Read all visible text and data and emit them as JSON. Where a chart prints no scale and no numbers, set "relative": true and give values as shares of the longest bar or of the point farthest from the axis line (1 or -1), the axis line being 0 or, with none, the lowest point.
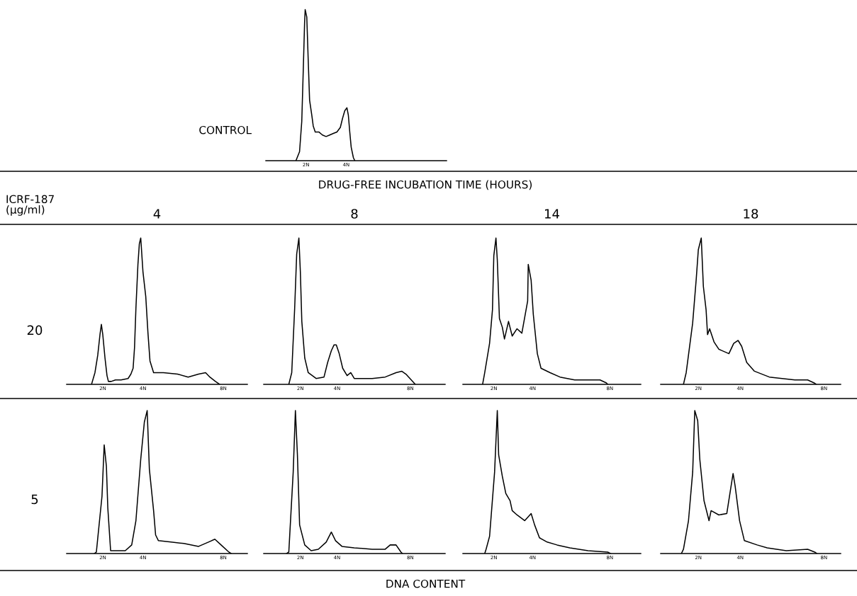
{
  "chart_data": [
    {
      "type": "line",
      "title": "CONTROL",
      "relative": true,
      "color": "#000000",
      "annotations": [
        "DRUG-FREE INCUBATION TIME (HOURS)",
        "ICRF-187\n(μg/ml)"
      ],
      "xlim": [
        0,
        9
      ],
      "xticks": [
        {
          "value": 2,
          "label": "2N"
        },
        {
          "value": 4,
          "label": "4N"
        }
      ],
      "x": [
        1.5,
        1.68,
        1.79,
        1.86,
        1.93,
        1.96,
        2.04,
        2.11,
        2.18,
        2.29,
        2.36,
        2.46,
        2.64,
        2.82,
        3.0,
        3.18,
        3.36,
        3.54,
        3.71,
        3.82,
        3.93,
        4.04,
        4.11,
        4.18,
        4.25,
        4.36,
        4.43
      ],
      "values": [
        0,
        0.06,
        0.26,
        0.58,
        0.91,
        1,
        0.95,
        0.67,
        0.4,
        0.3,
        0.23,
        0.19,
        0.19,
        0.17,
        0.16,
        0.17,
        0.18,
        0.19,
        0.22,
        0.28,
        0.33,
        0.35,
        0.3,
        0.19,
        0.09,
        0.02,
        0
      ]
    },
    {
      "type": "line",
      "title": "4",
      "ylabel": "20",
      "relative": true,
      "color": "#000000",
      "xlim": [
        0.2,
        9.2
      ],
      "xticks": [
        {
          "value": 2,
          "label": "2N"
        },
        {
          "value": 4,
          "label": "4N"
        },
        {
          "value": 8,
          "label": "8N"
        }
      ],
      "x": [
        1.44,
        1.61,
        1.75,
        1.86,
        1.93,
        2.0,
        2.11,
        2.21,
        2.28,
        2.42,
        2.63,
        2.91,
        3.26,
        3.4,
        3.51,
        3.58,
        3.65,
        3.75,
        3.82,
        3.89,
        4.0,
        4.14,
        4.25,
        4.35,
        4.53,
        5.02,
        5.72,
        6.25,
        6.77,
        7.12,
        7.33,
        7.61,
        7.82
      ],
      "values": [
        0,
        0.08,
        0.2,
        0.34,
        0.41,
        0.34,
        0.18,
        0.06,
        0.02,
        0.02,
        0.03,
        0.03,
        0.04,
        0.07,
        0.11,
        0.25,
        0.52,
        0.82,
        0.96,
        1,
        0.77,
        0.6,
        0.35,
        0.16,
        0.08,
        0.08,
        0.07,
        0.05,
        0.07,
        0.08,
        0.05,
        0.02,
        0
      ]
    },
    {
      "type": "line",
      "title": "8",
      "relative": true,
      "color": "#000000",
      "xlim": [
        0,
        9.9
      ],
      "xticks": [
        {
          "value": 2,
          "label": "2N"
        },
        {
          "value": 4,
          "label": "4N"
        },
        {
          "value": 8,
          "label": "8N"
        }
      ],
      "x": [
        1.37,
        1.53,
        1.69,
        1.8,
        1.92,
        2.0,
        2.08,
        2.24,
        2.43,
        2.86,
        3.29,
        3.49,
        3.69,
        3.84,
        3.96,
        4.12,
        4.31,
        4.55,
        4.75,
        4.94,
        5.92,
        6.63,
        7.22,
        7.53,
        7.76,
        8.2,
        8.27
      ],
      "values": [
        0,
        0.08,
        0.52,
        0.89,
        1,
        0.77,
        0.43,
        0.18,
        0.08,
        0.04,
        0.05,
        0.15,
        0.23,
        0.27,
        0.27,
        0.21,
        0.11,
        0.06,
        0.08,
        0.04,
        0.04,
        0.05,
        0.08,
        0.09,
        0.07,
        0.01,
        0
      ]
    },
    {
      "type": "line",
      "title": "14",
      "relative": true,
      "color": "#000000",
      "xlim": [
        0.4,
        9.6
      ],
      "xticks": [
        {
          "value": 2,
          "label": "2N"
        },
        {
          "value": 4,
          "label": "4N"
        },
        {
          "value": 8,
          "label": "8N"
        }
      ],
      "x": [
        1.42,
        1.53,
        1.78,
        1.93,
        2.0,
        2.11,
        2.18,
        2.29,
        2.44,
        2.55,
        2.76,
        2.95,
        3.2,
        3.45,
        3.6,
        3.75,
        3.78,
        3.93,
        4.04,
        4.25,
        4.44,
        4.91,
        5.42,
        6.18,
        6.98,
        7.49,
        7.82,
        7.89
      ],
      "values": [
        0,
        0.08,
        0.28,
        0.51,
        0.88,
        1,
        0.85,
        0.45,
        0.39,
        0.31,
        0.43,
        0.33,
        0.38,
        0.35,
        0.46,
        0.57,
        0.82,
        0.71,
        0.48,
        0.21,
        0.11,
        0.08,
        0.05,
        0.03,
        0.03,
        0.03,
        0.01,
        0
      ]
    },
    {
      "type": "line",
      "title": "18",
      "relative": true,
      "color": "#000000",
      "xlim": [
        0.2,
        8.8
      ],
      "xticks": [
        {
          "value": 2,
          "label": "2N"
        },
        {
          "value": 4,
          "label": "4N"
        },
        {
          "value": 8,
          "label": "8N"
        }
      ],
      "x": [
        1.29,
        1.42,
        1.73,
        1.9,
        2.0,
        2.14,
        2.24,
        2.37,
        2.44,
        2.54,
        2.75,
        2.98,
        3.46,
        3.69,
        3.9,
        4.07,
        4.31,
        4.68,
        5.39,
        6.0,
        6.61,
        7.22,
        7.53,
        7.63
      ],
      "values": [
        0,
        0.08,
        0.42,
        0.72,
        0.92,
        1,
        0.67,
        0.51,
        0.34,
        0.38,
        0.29,
        0.24,
        0.21,
        0.28,
        0.3,
        0.26,
        0.15,
        0.09,
        0.05,
        0.04,
        0.03,
        0.03,
        0.01,
        0
      ]
    },
    {
      "type": "line",
      "ylabel": "5",
      "relative": true,
      "color": "#000000",
      "xlim": [
        0.2,
        9.2
      ],
      "xticks": [
        {
          "value": 2,
          "label": "2N"
        },
        {
          "value": 4,
          "label": "4N"
        },
        {
          "value": 8,
          "label": "8N"
        }
      ],
      "x": [
        1.58,
        1.68,
        1.96,
        2.07,
        2.18,
        2.25,
        2.39,
        2.77,
        3.12,
        3.44,
        3.65,
        3.89,
        4.07,
        4.21,
        4.32,
        4.53,
        4.63,
        4.77,
        5.4,
        6.04,
        6.77,
        7.26,
        7.58,
        7.89,
        8.28,
        8.39
      ],
      "values": [
        0,
        0.01,
        0.4,
        0.76,
        0.61,
        0.32,
        0.02,
        0.02,
        0.02,
        0.06,
        0.23,
        0.66,
        0.92,
        1,
        0.59,
        0.3,
        0.13,
        0.09,
        0.08,
        0.07,
        0.05,
        0.08,
        0.1,
        0.06,
        0.01,
        0
      ]
    },
    {
      "type": "line",
      "relative": true,
      "color": "#000000",
      "xlim": [
        0,
        9.9
      ],
      "xticks": [
        {
          "value": 2,
          "label": "2N"
        },
        {
          "value": 4,
          "label": "4N"
        },
        {
          "value": 8,
          "label": "8N"
        }
      ],
      "x": [
        1.25,
        1.37,
        1.61,
        1.73,
        1.84,
        1.96,
        2.24,
        2.59,
        2.98,
        3.41,
        3.69,
        3.92,
        4.27,
        4.94,
        5.92,
        6.63,
        6.9,
        7.22,
        7.49,
        7.57
      ],
      "values": [
        0,
        0.01,
        0.57,
        1,
        0.69,
        0.2,
        0.06,
        0.02,
        0.03,
        0.08,
        0.15,
        0.09,
        0.05,
        0.04,
        0.03,
        0.03,
        0.06,
        0.06,
        0.01,
        0
      ]
    },
    {
      "type": "line",
      "relative": true,
      "color": "#000000",
      "xlim": [
        0.4,
        9.6
      ],
      "xticks": [
        {
          "value": 2,
          "label": "2N"
        },
        {
          "value": 4,
          "label": "4N"
        },
        {
          "value": 8,
          "label": "8N"
        }
      ],
      "x": [
        1.53,
        1.6,
        1.78,
        2.04,
        2.18,
        2.25,
        2.44,
        2.62,
        2.84,
        2.95,
        3.2,
        3.6,
        3.93,
        4.11,
        4.36,
        4.76,
        5.27,
        5.93,
        6.87,
        7.89,
        8.04
      ],
      "values": [
        0,
        0.03,
        0.12,
        0.57,
        1,
        0.69,
        0.54,
        0.42,
        0.37,
        0.3,
        0.27,
        0.23,
        0.28,
        0.2,
        0.11,
        0.08,
        0.06,
        0.04,
        0.02,
        0.01,
        0
      ]
    },
    {
      "type": "line",
      "relative": true,
      "color": "#000000",
      "annotations": [
        "DNA CONTENT"
      ],
      "xlim": [
        0.2,
        8.8
      ],
      "xticks": [
        {
          "value": 2,
          "label": "2N"
        },
        {
          "value": 4,
          "label": "4N"
        },
        {
          "value": 8,
          "label": "8N"
        }
      ],
      "x": [
        1.19,
        1.29,
        1.53,
        1.73,
        1.83,
        1.97,
        2.07,
        2.27,
        2.51,
        2.61,
        2.98,
        3.36,
        3.53,
        3.66,
        3.76,
        3.97,
        4.2,
        4.81,
        5.29,
        6.2,
        7.22,
        7.56,
        7.66
      ],
      "values": [
        0,
        0.03,
        0.23,
        0.57,
        1,
        0.93,
        0.66,
        0.37,
        0.23,
        0.3,
        0.27,
        0.28,
        0.44,
        0.56,
        0.47,
        0.23,
        0.09,
        0.06,
        0.04,
        0.02,
        0.03,
        0.01,
        0
      ]
    }
  ]
}
